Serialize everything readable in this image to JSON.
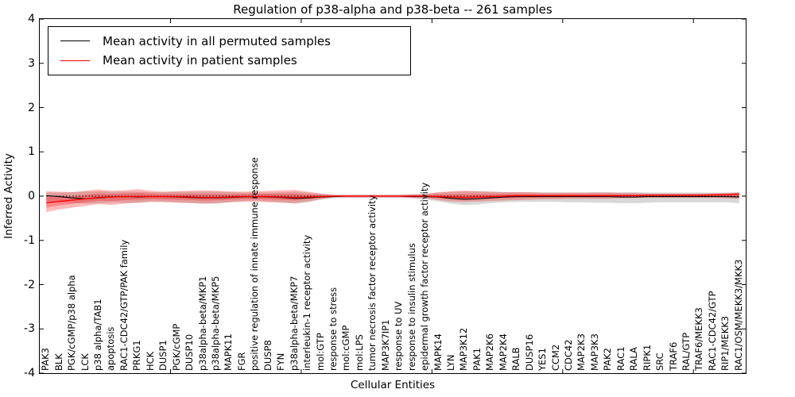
{
  "title": "Regulation of p38-alpha and p38-beta -- 261 samples",
  "axes": {
    "ylabel": "Inferred Activity",
    "xlabel": "Cellular Entities",
    "yticks": [
      "4",
      "3",
      "2",
      "1",
      "0",
      "-1",
      "-2",
      "-3",
      "-4"
    ]
  },
  "legend": [
    {
      "label": "Mean activity in all permuted samples",
      "color": "#000000"
    },
    {
      "label": "Mean activity in patient samples",
      "color": "#ff0000"
    }
  ],
  "colors": {
    "permuted_line": "#000000",
    "patient_line": "#ff0000",
    "permuted_band": "#a8a8a8",
    "patient_band": "#ff0000",
    "zero_line": "#000000"
  },
  "chart_data": {
    "type": "line",
    "title": "Regulation of p38-alpha and p38-beta -- 261 samples",
    "xlabel": "Cellular Entities",
    "ylabel": "Inferred Activity",
    "ylim": [
      -4,
      4
    ],
    "grid": false,
    "legend_position": "upper left",
    "categories": [
      "PAK3",
      "BLK",
      "PGK/cGMP/p38 alpha",
      "LCK",
      "p38 alpha/TAB1",
      "apoptosis",
      "RAC1-CDC42/GTP/PAK family",
      "PRKG1",
      "HCK",
      "DUSP1",
      "PGK/cGMP",
      "DUSP10",
      "p38alpha-beta/MKP1",
      "p38alpha-beta/MKP5",
      "MAPK11",
      "FGR",
      "positive regulation of innate immune response",
      "DUSP8",
      "FYN",
      "p38alpha-beta/MKP7",
      "interleukin-1 receptor activity",
      "mol:GTP",
      "response to stress",
      "mol:cGMP",
      "mol:LPS",
      "tumor necrosis factor receptor activity",
      "MAP3K7IP1",
      "response to UV",
      "response to insulin stimulus",
      "epidermal growth factor receptor activity",
      "MAPK14",
      "LYN",
      "MAP3K12",
      "PAK1",
      "MAP2K6",
      "MAP2K4",
      "RALB",
      "DUSP16",
      "YES1",
      "CCM2",
      "CDC42",
      "MAP2K3",
      "MAP3K3",
      "PAK2",
      "RAC1",
      "RALA",
      "RIPK1",
      "SRC",
      "TRAF6",
      "RAL/GTP",
      "TRAF6/MEKK3",
      "RAC1-CDC42/GTP",
      "RIP1/MEKK3",
      "RAC1/OSM/MEKK3/MKK3"
    ],
    "series": [
      {
        "name": "Mean activity in all permuted samples",
        "color": "#000000",
        "values": [
          0.01,
          -0.01,
          -0.04,
          -0.06,
          -0.04,
          -0.02,
          -0.01,
          -0.02,
          -0.01,
          -0.01,
          -0.02,
          -0.03,
          -0.04,
          -0.04,
          -0.03,
          -0.02,
          -0.01,
          -0.02,
          -0.03,
          -0.05,
          -0.04,
          -0.02,
          -0.01,
          0,
          0,
          0,
          0,
          0,
          -0.01,
          -0.01,
          -0.02,
          -0.05,
          -0.07,
          -0.06,
          -0.04,
          -0.02,
          -0.01,
          -0.01,
          -0.01,
          -0.01,
          -0.01,
          -0.01,
          -0.01,
          -0.01,
          -0.02,
          -0.02,
          -0.01,
          -0.01,
          -0.01,
          -0.01,
          -0.01,
          -0.01,
          -0.01,
          -0.02
        ]
      },
      {
        "name": "Mean activity in patient samples",
        "color": "#ff0000",
        "values": [
          -0.15,
          -0.12,
          -0.09,
          -0.06,
          -0.03,
          -0.02,
          -0.01,
          -0.01,
          -0.01,
          -0.01,
          -0.01,
          -0.02,
          -0.03,
          -0.03,
          -0.02,
          -0.01,
          -0.01,
          -0.01,
          -0.02,
          -0.03,
          -0.02,
          -0.01,
          0,
          0,
          0,
          0,
          0,
          0,
          0,
          0,
          -0.01,
          -0.02,
          -0.03,
          -0.02,
          -0.01,
          0,
          0.01,
          0.01,
          0.01,
          0.01,
          0.01,
          0.01,
          0.01,
          0.01,
          0.01,
          0.01,
          0.02,
          0.02,
          0.02,
          0.02,
          0.02,
          0.03,
          0.03,
          0.05
        ]
      }
    ],
    "bands": [
      {
        "name": "permuted-samples-band",
        "color": "#a8a8a8",
        "opacity": 0.45,
        "core": false,
        "upper": [
          0.08,
          0.08,
          0.09,
          0.1,
          0.11,
          0.1,
          0.1,
          0.1,
          0.09,
          0.09,
          0.1,
          0.1,
          0.1,
          0.1,
          0.09,
          0.08,
          0.08,
          0.08,
          0.09,
          0.1,
          0.08,
          0.05,
          0.03,
          0.03,
          0.03,
          0.03,
          0.03,
          0.03,
          0.04,
          0.05,
          0.08,
          0.1,
          0.11,
          0.11,
          0.1,
          0.09,
          0.09,
          0.09,
          0.08,
          0.08,
          0.08,
          0.08,
          0.09,
          0.09,
          0.09,
          0.09,
          0.08,
          0.08,
          0.08,
          0.08,
          0.08,
          0.08,
          0.08,
          0.09
        ],
        "lower": [
          -0.12,
          -0.13,
          -0.15,
          -0.17,
          -0.16,
          -0.14,
          -0.15,
          -0.15,
          -0.12,
          -0.12,
          -0.14,
          -0.15,
          -0.17,
          -0.17,
          -0.14,
          -0.11,
          -0.1,
          -0.12,
          -0.14,
          -0.17,
          -0.14,
          -0.08,
          -0.04,
          -0.04,
          -0.04,
          -0.04,
          -0.04,
          -0.04,
          -0.05,
          -0.07,
          -0.12,
          -0.17,
          -0.2,
          -0.19,
          -0.16,
          -0.14,
          -0.13,
          -0.13,
          -0.13,
          -0.13,
          -0.14,
          -0.14,
          -0.15,
          -0.15,
          -0.16,
          -0.16,
          -0.15,
          -0.14,
          -0.14,
          -0.14,
          -0.14,
          -0.14,
          -0.14,
          -0.16
        ]
      },
      {
        "name": "patient-samples-band",
        "color": "#ff0000",
        "opacity": 0.27,
        "core": true,
        "upper": [
          0.11,
          0.1,
          0.09,
          0.12,
          0.15,
          0.12,
          0.13,
          0.16,
          0.12,
          0.1,
          0.11,
          0.12,
          0.13,
          0.12,
          0.11,
          0.1,
          0.11,
          0.12,
          0.13,
          0.14,
          0.1,
          0.06,
          0.03,
          0.03,
          0.03,
          0.03,
          0.03,
          0.03,
          0.04,
          0.05,
          0.09,
          0.11,
          0.12,
          0.11,
          0.1,
          0.09,
          0.09,
          0.09,
          0.08,
          0.08,
          0.08,
          0.08,
          0.08,
          0.08,
          0.07,
          0.07,
          0.06,
          0.06,
          0.06,
          0.06,
          0.06,
          0.06,
          0.07,
          0.08
        ],
        "lower": [
          -0.36,
          -0.3,
          -0.26,
          -0.22,
          -0.18,
          -0.2,
          -0.17,
          -0.15,
          -0.13,
          -0.14,
          -0.15,
          -0.16,
          -0.17,
          -0.16,
          -0.14,
          -0.13,
          -0.13,
          -0.14,
          -0.15,
          -0.16,
          -0.12,
          -0.07,
          -0.03,
          -0.03,
          -0.03,
          -0.03,
          -0.03,
          -0.03,
          -0.04,
          -0.05,
          -0.09,
          -0.12,
          -0.13,
          -0.12,
          -0.11,
          -0.1,
          -0.09,
          -0.08,
          -0.07,
          -0.07,
          -0.06,
          -0.06,
          -0.06,
          -0.06,
          -0.05,
          -0.05,
          -0.04,
          -0.04,
          -0.04,
          -0.04,
          -0.04,
          -0.04,
          -0.05,
          -0.06
        ]
      }
    ],
    "zero_line": true
  }
}
